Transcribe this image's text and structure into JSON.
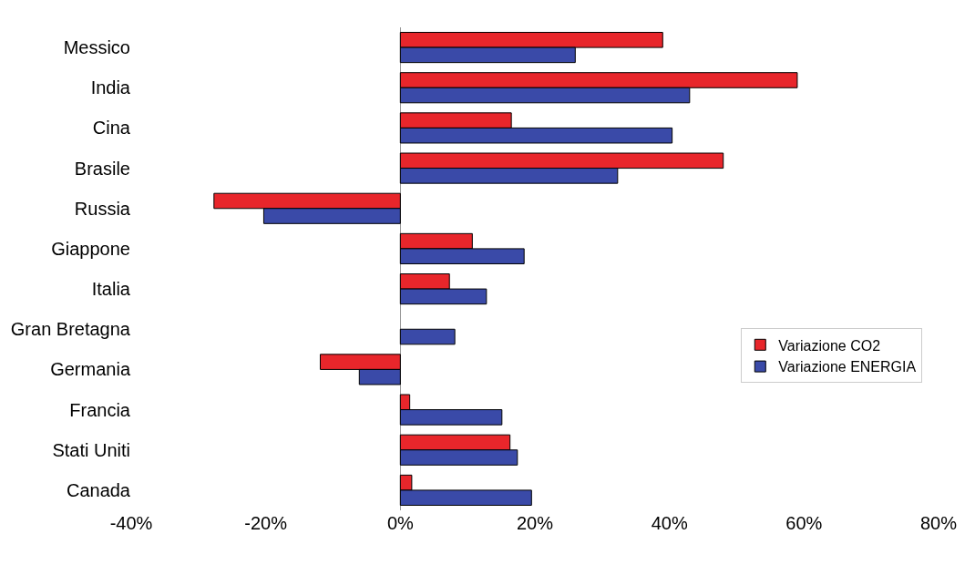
{
  "chart_data": {
    "type": "bar",
    "orientation": "horizontal",
    "categories": [
      "Messico",
      "India",
      "Cina",
      "Brasile",
      "Russia",
      "Giappone",
      "Italia",
      "Gran Bretagna",
      "Germania",
      "Francia",
      "Stati Uniti",
      "Canada"
    ],
    "series": [
      {
        "name": "Variazione CO2",
        "color": "#e8262b",
        "values": [
          39,
          59,
          16.5,
          48,
          -27.7,
          10.7,
          7.3,
          null,
          -11.9,
          1.4,
          16.3,
          1.7
        ]
      },
      {
        "name": "Variazione ENERGIA",
        "color": "#3a4aa8",
        "values": [
          26,
          43,
          40.4,
          32.3,
          -20.3,
          18.4,
          12.8,
          8.1,
          -6.1,
          15.1,
          17.4,
          19.5
        ]
      }
    ],
    "xlim": [
      -40,
      80
    ],
    "xticks": [
      {
        "value": -40,
        "label": "-40%"
      },
      {
        "value": -20,
        "label": "-20%"
      },
      {
        "value": 0,
        "label": "0%"
      },
      {
        "value": 20,
        "label": "20%"
      },
      {
        "value": 40,
        "label": "40%"
      },
      {
        "value": 60,
        "label": "60%"
      },
      {
        "value": 80,
        "label": "80%"
      }
    ],
    "legend": "right"
  }
}
